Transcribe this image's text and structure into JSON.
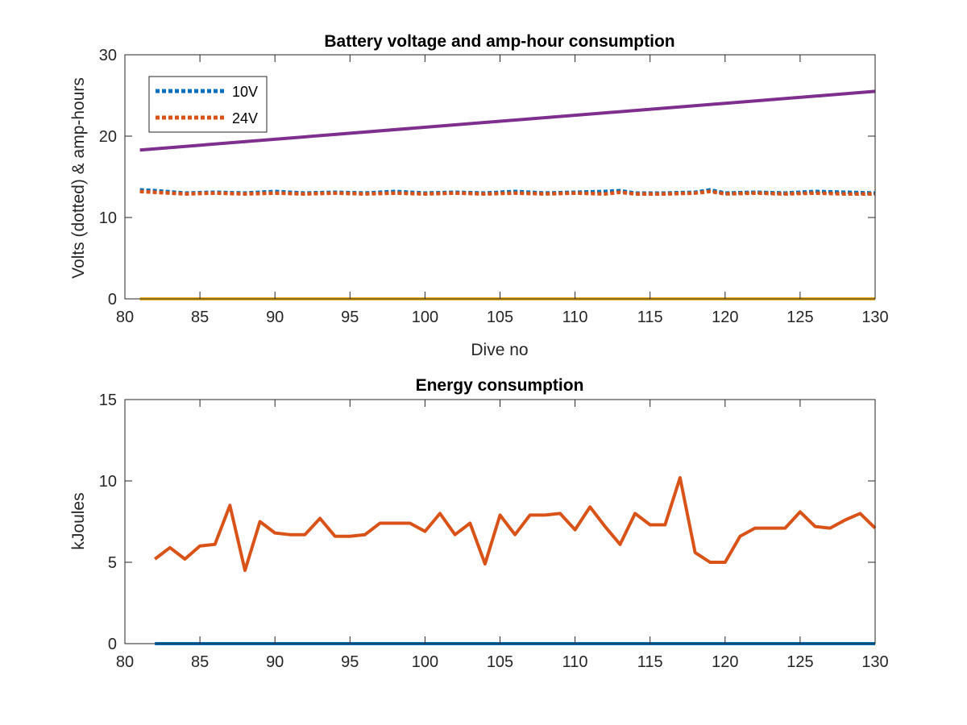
{
  "chart_data": [
    {
      "type": "line",
      "title": "Battery voltage and amp-hour consumption",
      "xlabel": "Dive no",
      "ylabel": "Volts (dotted) & amp-hours",
      "xlim": [
        80,
        130
      ],
      "ylim": [
        0,
        30
      ],
      "xticks": [
        "80",
        "85",
        "90",
        "95",
        "100",
        "105",
        "110",
        "115",
        "120",
        "125",
        "130"
      ],
      "yticks": [
        "0",
        "10",
        "20",
        "30"
      ],
      "legend": {
        "position": "top-left",
        "entries": [
          "10V",
          "24V"
        ]
      },
      "series": [
        {
          "name": "10V",
          "style": "dotted",
          "color": "#0072BD",
          "x": [
            81,
            82,
            84,
            86,
            88,
            90,
            92,
            94,
            96,
            98,
            100,
            102,
            104,
            106,
            108,
            110,
            112,
            113,
            114,
            116,
            118,
            119,
            120,
            122,
            124,
            126,
            128,
            130
          ],
          "y": [
            13.4,
            13.3,
            13.0,
            13.1,
            13.0,
            13.2,
            13.0,
            13.1,
            13.0,
            13.2,
            13.0,
            13.1,
            13.0,
            13.2,
            13.0,
            13.1,
            13.2,
            13.3,
            13.0,
            13.0,
            13.1,
            13.4,
            13.0,
            13.1,
            13.0,
            13.2,
            13.1,
            13.0
          ]
        },
        {
          "name": "24V",
          "style": "dotted",
          "color": "#D95319",
          "x": [
            81,
            82,
            84,
            86,
            88,
            90,
            92,
            94,
            96,
            98,
            100,
            102,
            104,
            106,
            108,
            110,
            112,
            113,
            114,
            116,
            118,
            119,
            120,
            122,
            124,
            126,
            128,
            130
          ],
          "y": [
            13.2,
            13.1,
            12.9,
            13.0,
            12.9,
            13.0,
            12.9,
            13.0,
            12.9,
            13.0,
            12.9,
            13.0,
            12.9,
            13.0,
            12.9,
            13.0,
            12.9,
            13.1,
            12.9,
            12.9,
            13.0,
            13.2,
            12.9,
            13.0,
            12.9,
            13.0,
            12.9,
            12.9
          ]
        },
        {
          "style": "solid",
          "color": "#7E2F8E",
          "x": [
            81,
            130
          ],
          "y": [
            18.3,
            25.5
          ]
        },
        {
          "style": "solid",
          "color": "#EDB120",
          "x": [
            81,
            130
          ],
          "y": [
            0,
            0
          ]
        }
      ]
    },
    {
      "type": "line",
      "title": "Energy consumption",
      "xlabel": "",
      "ylabel": "kJoules",
      "xlim": [
        80,
        130
      ],
      "ylim": [
        0,
        15
      ],
      "xticks": [
        "80",
        "85",
        "90",
        "95",
        "100",
        "105",
        "110",
        "115",
        "120",
        "125",
        "130"
      ],
      "yticks": [
        "0",
        "5",
        "10",
        "15"
      ],
      "series": [
        {
          "style": "solid",
          "color": "#D95319",
          "x": [
            82,
            83,
            84,
            85,
            86,
            87,
            88,
            89,
            90,
            91,
            92,
            93,
            94,
            95,
            96,
            97,
            98,
            99,
            100,
            101,
            102,
            103,
            104,
            105,
            106,
            107,
            108,
            109,
            110,
            111,
            112,
            113,
            114,
            115,
            116,
            117,
            118,
            119,
            120,
            121,
            122,
            123,
            124,
            125,
            126,
            127,
            128,
            129,
            130
          ],
          "y": [
            5.2,
            5.9,
            5.2,
            6.0,
            6.1,
            8.5,
            4.5,
            7.5,
            6.8,
            6.7,
            6.7,
            7.7,
            6.6,
            6.6,
            6.7,
            7.4,
            7.4,
            7.4,
            6.9,
            8.0,
            6.7,
            7.4,
            4.9,
            7.9,
            6.7,
            7.9,
            7.9,
            8.0,
            7.0,
            8.4,
            7.2,
            6.1,
            8.0,
            7.3,
            7.3,
            10.2,
            5.6,
            5.0,
            5.0,
            6.6,
            7.1,
            7.1,
            7.1,
            8.1,
            7.2,
            7.1,
            7.6,
            8.0,
            7.1
          ]
        },
        {
          "style": "solid",
          "color": "#0072BD",
          "x": [
            82,
            130
          ],
          "y": [
            0,
            0
          ]
        }
      ]
    }
  ]
}
